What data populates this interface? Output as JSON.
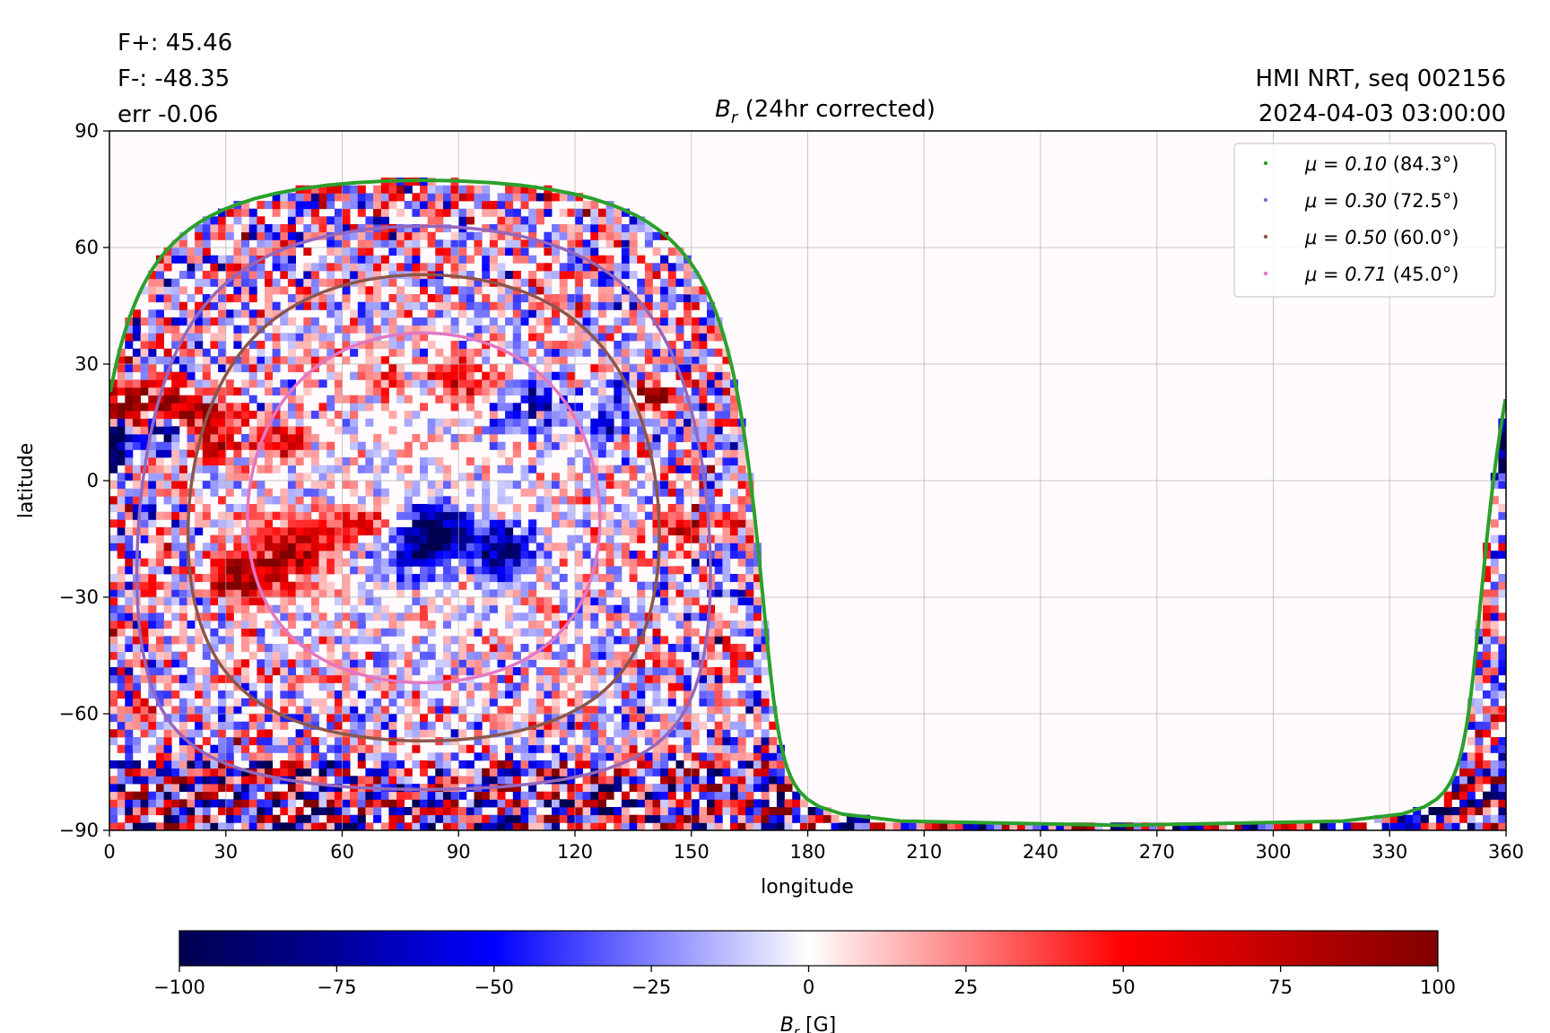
{
  "stats": {
    "flux_pos": "F+: 45.46",
    "flux_neg": "F-: -48.35",
    "err": "err -0.06",
    "source": "HMI NRT, seq 002156",
    "datetime": "2024-04-03 03:00:00"
  },
  "chart_data": {
    "type": "heatmap",
    "title_symbol": "B",
    "title_subscript": "r",
    "title_rest": " (24hr corrected)",
    "xlabel": "longitude",
    "ylabel": "latitude",
    "xlim": [
      0,
      360
    ],
    "ylim": [
      -90,
      90
    ],
    "x_ticks": [
      0,
      30,
      60,
      90,
      120,
      150,
      180,
      210,
      240,
      270,
      300,
      330,
      360
    ],
    "y_ticks": [
      -90,
      -60,
      -30,
      0,
      30,
      60,
      90
    ],
    "x_tick_labels": [
      "0",
      "30",
      "60",
      "90",
      "120",
      "150",
      "180",
      "210",
      "240",
      "270",
      "300",
      "330",
      "360"
    ],
    "y_tick_labels": [
      "−90",
      "−60",
      "−30",
      "0",
      "30",
      "60",
      "90"
    ],
    "grid": true,
    "disk_center": {
      "lon": 81,
      "lat": -7
    },
    "legend_position": "top-right",
    "series": [
      {
        "mu_label": "μ = 0.10",
        "angle_label": "(84.3°)",
        "angle_deg": 84.3,
        "color": "#2ca02c"
      },
      {
        "mu_label": "μ = 0.30",
        "angle_label": "(72.5°)",
        "angle_deg": 72.5,
        "color": "#9467bd"
      },
      {
        "mu_label": "μ = 0.50",
        "angle_label": "(60.0°)",
        "angle_deg": 60.0,
        "color": "#8c564b"
      },
      {
        "mu_label": "μ = 0.71",
        "angle_label": "(45.0°)",
        "angle_deg": 45.0,
        "color": "#e377c2"
      }
    ],
    "colorbar": {
      "label_symbol": "B",
      "label_subscript": "r",
      "label_rest": " [G]",
      "range": [
        -100,
        100
      ],
      "ticks": [
        -100,
        -75,
        -50,
        -25,
        0,
        25,
        50,
        75,
        100
      ],
      "tick_labels": [
        "−100",
        "−75",
        "−50",
        "−25",
        "0",
        "25",
        "50",
        "75",
        "100"
      ],
      "colormap": "seismic"
    }
  }
}
